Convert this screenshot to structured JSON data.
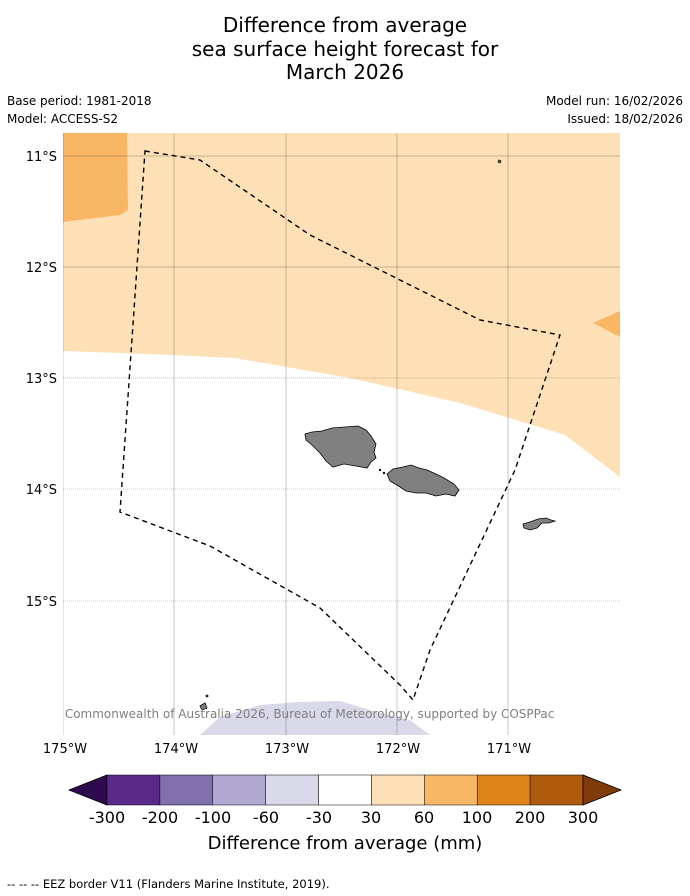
{
  "title": {
    "line1": "Difference from average",
    "line2": "sea surface height forecast for",
    "line3": "March 2026"
  },
  "meta": {
    "base_period": "Base period: 1981-2018",
    "model": "Model: ACCESS-S2",
    "model_run": "Model run: 16/02/2026",
    "issued": "Issued: 18/02/2026"
  },
  "map": {
    "lat_labels": [
      "11°S",
      "12°S",
      "13°S",
      "14°S",
      "15°S"
    ],
    "lon_labels": [
      "175°W",
      "174°W",
      "173°W",
      "172°W",
      "171°W"
    ],
    "copyright": "© Commonwealth of Australia 2026, Bureau of Meteorology, supported by COSPPac",
    "colors": {
      "anom_30_60": "#fde0b6",
      "anom_60_100": "#f9b766",
      "anom_neg_30_60": "#d9d9ea",
      "land": "#808080",
      "ocean_neutral": "#ffffff"
    }
  },
  "colorbar": {
    "ticks": [
      "-300",
      "-200",
      "-100",
      "-60",
      "-30",
      "30",
      "60",
      "100",
      "200",
      "300"
    ],
    "colors": [
      "#2d0b4e",
      "#5a2a8a",
      "#8071ae",
      "#b1a9d1",
      "#d9d9ea",
      "#ffffff",
      "#fde0b6",
      "#f9b766",
      "#e08419",
      "#b05a0b",
      "#7f3c0a"
    ],
    "label": "Difference from average (mm)"
  },
  "footnote": "--  --  -- EEZ border V11 (Flanders Marine Institute, 2019)."
}
